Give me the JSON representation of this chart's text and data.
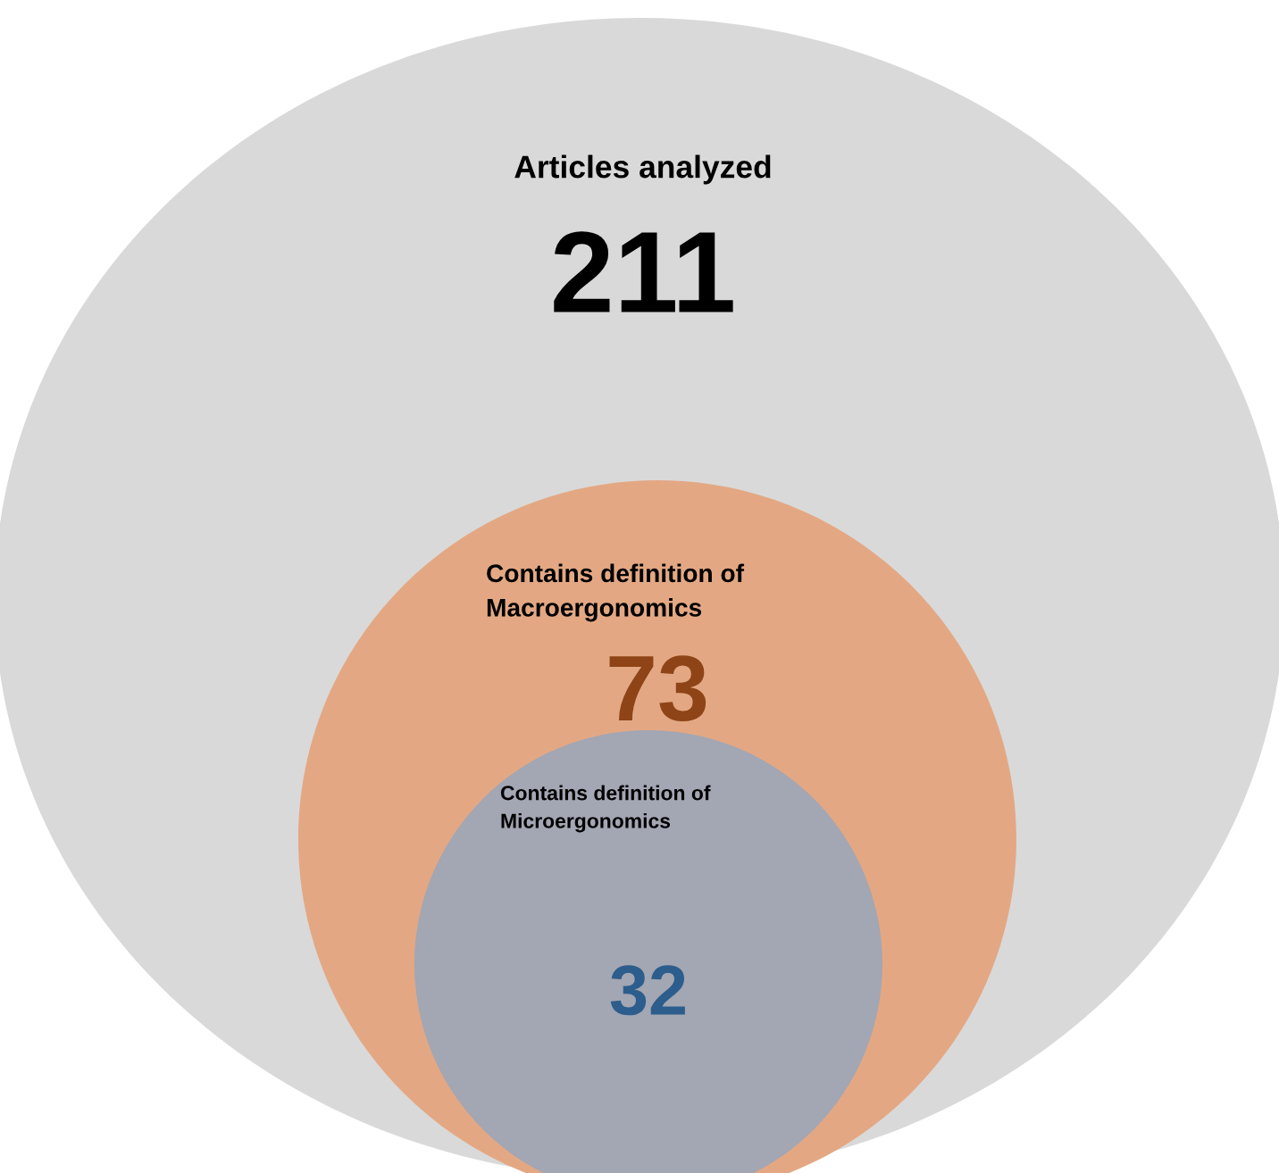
{
  "chart_data": {
    "type": "other",
    "categories": [
      "Articles analyzed",
      "Contains definition of\nMacroergonomics",
      "Contains definition of\nMicroergonomics"
    ],
    "values": [
      211,
      73,
      32
    ],
    "data_labels": true,
    "colors": [
      "#d9d9d9",
      "#e3a883",
      "#a3a6b3"
    ]
  }
}
